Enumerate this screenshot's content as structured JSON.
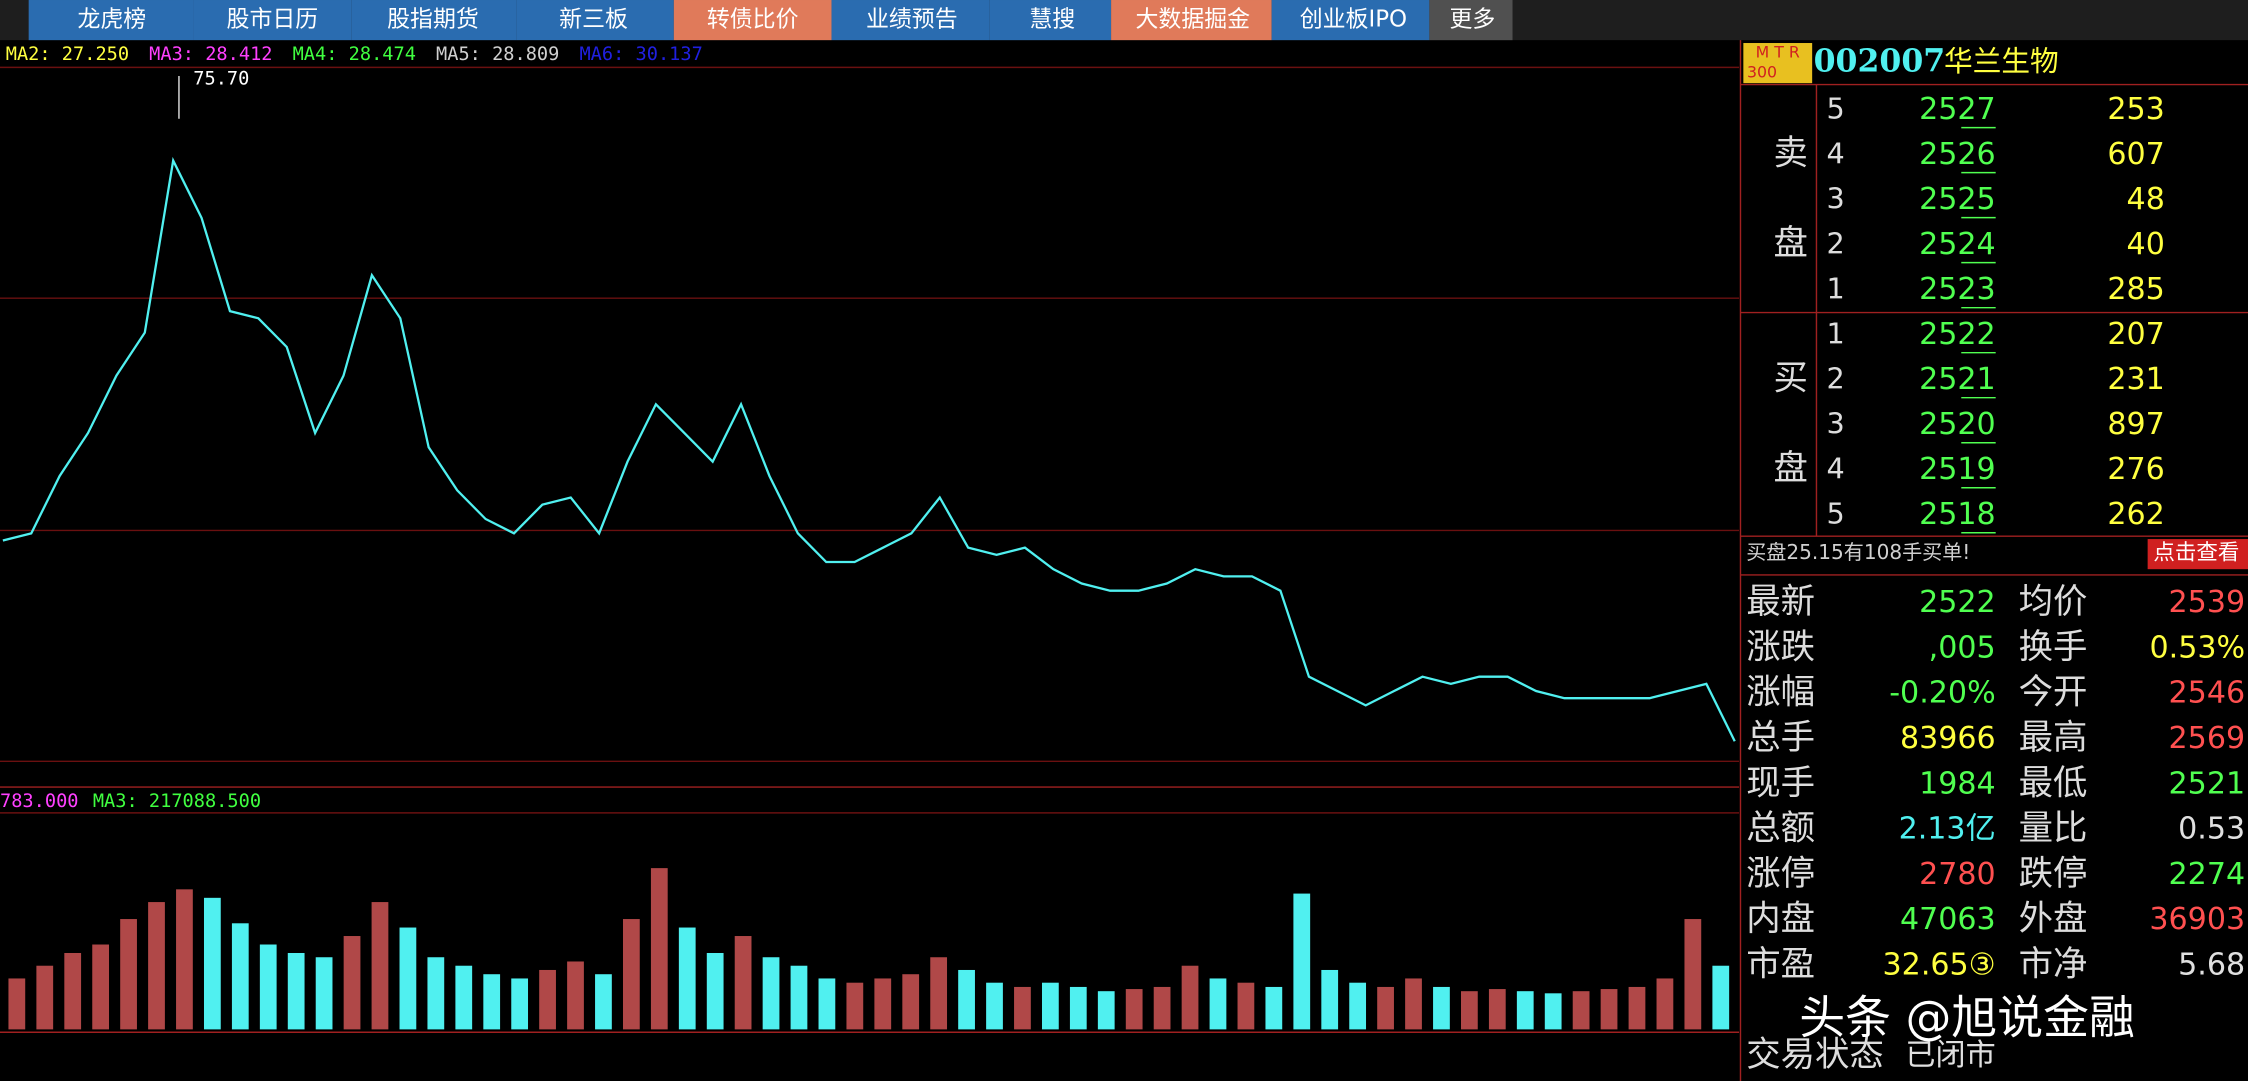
{
  "nav": {
    "tabs": [
      "龙虎榜",
      "股市日历",
      "股指期货",
      "新三板",
      "转债比价",
      "业绩预告",
      "慧搜",
      "大数据掘金",
      "创业板IPO",
      "更多"
    ]
  },
  "chart_data": [
    {
      "type": "line",
      "ma_legend": [
        {
          "text": "MA2: 27.250",
          "color": "#ffff40"
        },
        {
          "text": "MA3: 28.412",
          "color": "#ff40ff"
        },
        {
          "text": "MA4: 28.474",
          "color": "#40ff40"
        },
        {
          "text": "MA5: 28.809",
          "color": "#d0d0d0"
        },
        {
          "text": "MA6: 30.137",
          "color": "#2020e0"
        }
      ],
      "annotations": [
        {
          "value": 75.7,
          "label": "75.70"
        }
      ],
      "values": [
        40.4,
        41.0,
        45.8,
        49.4,
        54.2,
        57.8,
        72.2,
        67.4,
        59.6,
        59.0,
        56.6,
        49.4,
        54.2,
        62.6,
        59.0,
        48.2,
        44.6,
        42.2,
        41.0,
        43.4,
        44.0,
        41.0,
        47.0,
        51.8,
        49.4,
        47.0,
        51.8,
        45.8,
        41.0,
        38.6,
        38.6,
        39.8,
        41.0,
        44.0,
        39.8,
        39.2,
        39.8,
        38.0,
        36.8,
        36.2,
        36.2,
        36.8,
        38.0,
        37.4,
        37.4,
        36.2,
        29.0,
        27.8,
        26.6,
        27.8,
        29.0,
        28.4,
        29.0,
        29.0,
        27.8,
        27.2,
        27.2,
        27.2,
        27.2,
        27.8,
        28.4,
        23.6
      ],
      "color": "#50f0f0",
      "ylim": [
        20,
        80
      ]
    },
    {
      "type": "bar",
      "legend_texts": [
        {
          "text": "783.000",
          "color": "#ff40ff"
        },
        {
          "text": "MA3: 217088.500",
          "color": "#40ff40"
        }
      ],
      "values": [
        120000,
        150000,
        180000,
        200000,
        260000,
        300000,
        330000,
        310000,
        250000,
        200000,
        180000,
        170000,
        220000,
        300000,
        240000,
        170000,
        150000,
        130000,
        120000,
        140000,
        160000,
        130000,
        260000,
        380000,
        240000,
        180000,
        220000,
        170000,
        150000,
        120000,
        110000,
        120000,
        130000,
        170000,
        140000,
        110000,
        100000,
        110000,
        100000,
        90000,
        95000,
        100000,
        150000,
        120000,
        110000,
        100000,
        320000,
        140000,
        110000,
        100000,
        120000,
        100000,
        90000,
        95000,
        90000,
        85000,
        90000,
        95000,
        100000,
        120000,
        260000,
        150000
      ],
      "up_color": "#b04848",
      "down_color": "#50f0f0",
      "ylim": [
        0,
        500000
      ]
    }
  ],
  "quote": {
    "badge": [
      "M T R",
      "300"
    ],
    "code": "002007",
    "name": "华兰生物",
    "sell_label": [
      "卖",
      "盘"
    ],
    "buy_label": [
      "买",
      "盘"
    ],
    "sell": [
      {
        "level": "5",
        "price": "2527",
        "volume": "253"
      },
      {
        "level": "4",
        "price": "2526",
        "volume": "607"
      },
      {
        "level": "3",
        "price": "2525",
        "volume": "48"
      },
      {
        "level": "2",
        "price": "2524",
        "volume": "40"
      },
      {
        "level": "1",
        "price": "2523",
        "volume": "285"
      }
    ],
    "buy": [
      {
        "level": "1",
        "price": "2522",
        "volume": "207"
      },
      {
        "level": "2",
        "price": "2521",
        "volume": "231"
      },
      {
        "level": "3",
        "price": "2520",
        "volume": "897"
      },
      {
        "level": "4",
        "price": "2519",
        "volume": "276"
      },
      {
        "level": "5",
        "price": "2518",
        "volume": "262"
      }
    ],
    "notice": "买盘25.15有108手买单!",
    "button": "点击查看",
    "stats": [
      [
        {
          "label": "最新",
          "value": "2522",
          "color": "#50ff50"
        },
        {
          "label": "均价",
          "value": "2539",
          "color": "#ff5050"
        }
      ],
      [
        {
          "label": "涨跌",
          "value": ",005",
          "color": "#50ff50"
        },
        {
          "label": "换手",
          "value": "0.53%",
          "color": "#ffff40"
        }
      ],
      [
        {
          "label": "涨幅",
          "value": "-0.20%",
          "color": "#50ff50"
        },
        {
          "label": "今开",
          "value": "2546",
          "color": "#ff5050"
        }
      ],
      [
        {
          "label": "总手",
          "value": "83966",
          "color": "#ffff40"
        },
        {
          "label": "最高",
          "value": "2569",
          "color": "#ff5050"
        }
      ],
      [
        {
          "label": "现手",
          "value": "1984",
          "color": "#50ff50"
        },
        {
          "label": "最低",
          "value": "2521",
          "color": "#50ff50"
        }
      ],
      [
        {
          "label": "总额",
          "value": "2.13亿",
          "color": "#50f0f0"
        },
        {
          "label": "量比",
          "value": "0.53",
          "color": "#e0e0e0"
        }
      ],
      [
        {
          "label": "涨停",
          "value": "2780",
          "color": "#ff5050"
        },
        {
          "label": "跌停",
          "value": "2274",
          "color": "#50ff50"
        }
      ],
      [
        {
          "label": "内盘",
          "value": "47063",
          "color": "#50ff50"
        },
        {
          "label": "外盘",
          "value": "36903",
          "color": "#ff5050"
        }
      ],
      [
        {
          "label": "市盈",
          "value": "32.65③",
          "color": "#ffff40"
        },
        {
          "label": "市净",
          "value": "5.68",
          "color": "#e0e0e0"
        }
      ],
      [
        {
          "label": "交易状态",
          "value": "已闭市",
          "color": "#e0e0e0"
        }
      ]
    ]
  },
  "watermark": "头条 @旭说金融"
}
